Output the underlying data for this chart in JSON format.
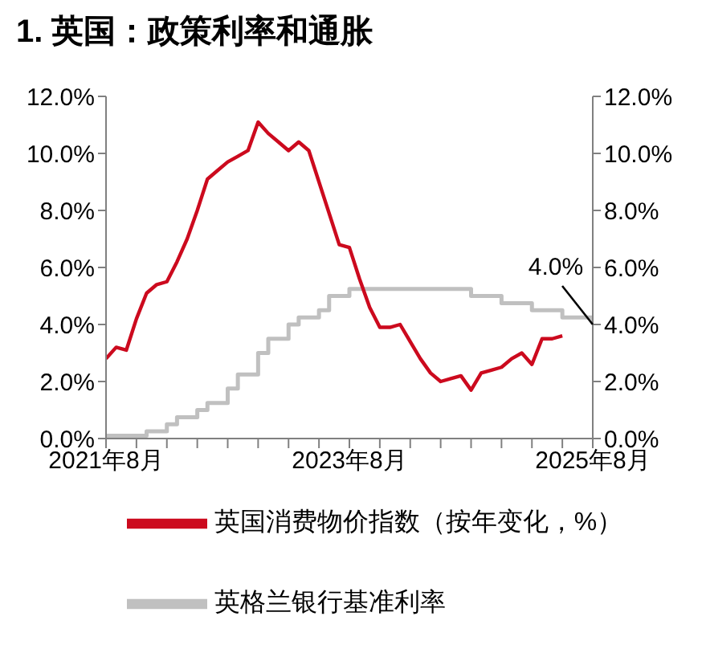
{
  "chart_data": {
    "type": "line",
    "title": "1. 英国：政策利率和通胀",
    "x": [
      "2021-08",
      "2021-09",
      "2021-10",
      "2021-11",
      "2021-12",
      "2022-01",
      "2022-02",
      "2022-03",
      "2022-04",
      "2022-05",
      "2022-06",
      "2022-07",
      "2022-08",
      "2022-09",
      "2022-10",
      "2022-11",
      "2022-12",
      "2023-01",
      "2023-02",
      "2023-03",
      "2023-04",
      "2023-05",
      "2023-06",
      "2023-07",
      "2023-08",
      "2023-09",
      "2023-10",
      "2023-11",
      "2023-12",
      "2024-01",
      "2024-02",
      "2024-03",
      "2024-04",
      "2024-05",
      "2024-06",
      "2024-07",
      "2024-08",
      "2024-09",
      "2024-10",
      "2024-11",
      "2024-12",
      "2025-01",
      "2025-02",
      "2025-03",
      "2025-04",
      "2025-05",
      "2025-06",
      "2025-07",
      "2025-08"
    ],
    "series": [
      {
        "name": "英格兰银行基准利率",
        "type": "step",
        "color": "#c0c0c0",
        "values": [
          0.1,
          0.1,
          0.1,
          0.1,
          0.25,
          0.25,
          0.5,
          0.75,
          0.75,
          1.0,
          1.25,
          1.25,
          1.75,
          2.25,
          2.25,
          3.0,
          3.5,
          3.5,
          4.0,
          4.25,
          4.25,
          4.5,
          5.0,
          5.0,
          5.25,
          5.25,
          5.25,
          5.25,
          5.25,
          5.25,
          5.25,
          5.25,
          5.25,
          5.25,
          5.25,
          5.25,
          5.0,
          5.0,
          5.0,
          4.75,
          4.75,
          4.75,
          4.5,
          4.5,
          4.5,
          4.25,
          4.25,
          4.25,
          4.0
        ]
      },
      {
        "name": "英国消费物价指数（按年变化，%）",
        "type": "line",
        "color": "#cc0a1e",
        "values": [
          2.8,
          3.2,
          3.1,
          4.2,
          5.1,
          5.4,
          5.5,
          6.2,
          7.0,
          8.0,
          9.1,
          9.4,
          9.7,
          9.9,
          10.1,
          11.1,
          10.7,
          10.4,
          10.1,
          10.4,
          10.1,
          9.0,
          7.9,
          6.8,
          6.7,
          5.6,
          4.6,
          3.9,
          3.9,
          4.0,
          3.4,
          2.8,
          2.3,
          2.0,
          2.1,
          2.2,
          1.7,
          2.3,
          2.4,
          2.5,
          2.8,
          3.0,
          2.6,
          3.5,
          3.5,
          3.6,
          null,
          null,
          null
        ]
      }
    ],
    "xlim": [
      "2021-08",
      "2025-08"
    ],
    "xticks": [
      {
        "value": "2021-08",
        "label": "2021年8月"
      },
      {
        "value": "2021-11",
        "label": null
      },
      {
        "value": "2022-02",
        "label": null
      },
      {
        "value": "2022-05",
        "label": null
      },
      {
        "value": "2022-08",
        "label": null
      },
      {
        "value": "2022-11",
        "label": null
      },
      {
        "value": "2023-02",
        "label": null
      },
      {
        "value": "2023-05",
        "label": null
      },
      {
        "value": "2023-08",
        "label": "2023年8月"
      },
      {
        "value": "2023-11",
        "label": null
      },
      {
        "value": "2024-02",
        "label": null
      },
      {
        "value": "2024-05",
        "label": null
      },
      {
        "value": "2024-08",
        "label": null
      },
      {
        "value": "2024-11",
        "label": null
      },
      {
        "value": "2025-02",
        "label": null
      },
      {
        "value": "2025-05",
        "label": null
      },
      {
        "value": "2025-08",
        "label": "2025年8月"
      }
    ],
    "ylim": [
      0,
      12
    ],
    "yticks": [
      {
        "value": 0,
        "label": "0.0%"
      },
      {
        "value": 2,
        "label": "2.0%"
      },
      {
        "value": 4,
        "label": "4.0%"
      },
      {
        "value": 6,
        "label": "6.0%"
      },
      {
        "value": 8,
        "label": "8.0%"
      },
      {
        "value": 10,
        "label": "10.0%"
      },
      {
        "value": 12,
        "label": "12.0%"
      }
    ],
    "y2lim": [
      0,
      12
    ],
    "y2ticks": [
      {
        "value": 0,
        "label": "0.0%"
      },
      {
        "value": 2,
        "label": "2.0%"
      },
      {
        "value": 4,
        "label": "4.0%"
      },
      {
        "value": 6,
        "label": "6.0%"
      },
      {
        "value": 8,
        "label": "8.0%"
      },
      {
        "value": 10,
        "label": "10.0%"
      },
      {
        "value": 12,
        "label": "12.0%"
      }
    ],
    "annotations": [
      {
        "text": "4.0%",
        "x": "2025-08",
        "y": 4.0
      }
    ],
    "legend": "bottom",
    "grid": false,
    "marker": "none",
    "line_style": "solid"
  }
}
